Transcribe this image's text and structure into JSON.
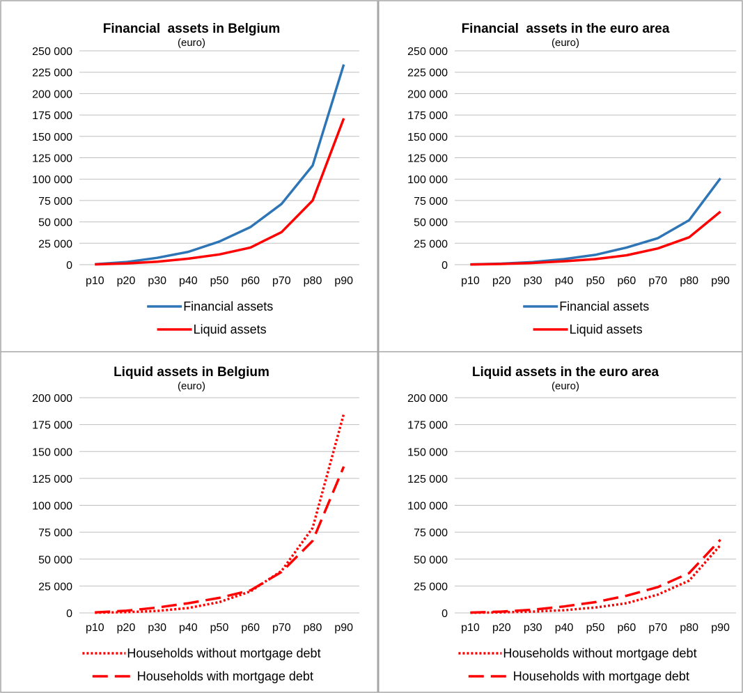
{
  "chart_data": [
    {
      "type": "line",
      "title": "Financial  assets in Belgium",
      "subtitle": "(euro)",
      "categories": [
        "p10",
        "p20",
        "p30",
        "p40",
        "p50",
        "p60",
        "p70",
        "p80",
        "p90"
      ],
      "ylim": [
        0,
        250000
      ],
      "yticks": [
        0,
        25000,
        50000,
        75000,
        100000,
        125000,
        150000,
        175000,
        200000,
        225000,
        250000
      ],
      "ytick_labels": [
        "0",
        "25 000",
        "50 000",
        "75 000",
        "100 000",
        "125 000",
        "150 000",
        "175 000",
        "200 000",
        "225 000",
        "250 000"
      ],
      "grid": true,
      "legend_position": "bottom",
      "series": [
        {
          "name": "Financial assets",
          "values": [
            500,
            3000,
            8000,
            15000,
            27000,
            44000,
            71000,
            116000,
            234000
          ],
          "color": "#2e75b6",
          "dash": "solid"
        },
        {
          "name": "Liquid assets",
          "values": [
            300,
            1500,
            3500,
            7000,
            12000,
            20000,
            38000,
            75000,
            171000
          ],
          "color": "#ff0000",
          "dash": "solid"
        }
      ]
    },
    {
      "type": "line",
      "title": "Financial  assets in the euro area",
      "subtitle": "(euro)",
      "categories": [
        "p10",
        "p20",
        "p30",
        "p40",
        "p50",
        "p60",
        "p70",
        "p80",
        "p90"
      ],
      "ylim": [
        0,
        250000
      ],
      "yticks": [
        0,
        25000,
        50000,
        75000,
        100000,
        125000,
        150000,
        175000,
        200000,
        225000,
        250000
      ],
      "ytick_labels": [
        "0",
        "25 000",
        "50 000",
        "75 000",
        "100 000",
        "125 000",
        "150 000",
        "175 000",
        "200 000",
        "225 000",
        "250 000"
      ],
      "grid": true,
      "legend_position": "bottom",
      "series": [
        {
          "name": "Financial assets",
          "values": [
            300,
            1200,
            3000,
            6500,
            11500,
            20000,
            31000,
            52000,
            101000
          ],
          "color": "#2e75b6",
          "dash": "solid"
        },
        {
          "name": "Liquid assets",
          "values": [
            200,
            800,
            2000,
            4000,
            6500,
            11000,
            19000,
            32000,
            62000
          ],
          "color": "#ff0000",
          "dash": "solid"
        }
      ]
    },
    {
      "type": "line",
      "title": "Liquid assets in Belgium",
      "subtitle": "(euro)",
      "categories": [
        "p10",
        "p20",
        "p30",
        "p40",
        "p50",
        "p60",
        "p70",
        "p80",
        "p90"
      ],
      "ylim": [
        0,
        200000
      ],
      "yticks": [
        0,
        25000,
        50000,
        75000,
        100000,
        125000,
        150000,
        175000,
        200000
      ],
      "ytick_labels": [
        "0",
        "25 000",
        "50 000",
        "75 000",
        "100 000",
        "125 000",
        "150 000",
        "175 000",
        "200 000"
      ],
      "grid": true,
      "legend_position": "bottom",
      "series": [
        {
          "name": "Households without mortgage debt",
          "values": [
            200,
            700,
            1800,
            4500,
            10000,
            20000,
            39000,
            79000,
            185000
          ],
          "color": "#ff0000",
          "dash": "dotted"
        },
        {
          "name": "Households with mortgage debt",
          "values": [
            500,
            2000,
            5000,
            9000,
            14000,
            21000,
            38000,
            67000,
            136000
          ],
          "color": "#ff0000",
          "dash": "dashed"
        }
      ]
    },
    {
      "type": "line",
      "title": "Liquid assets in the euro area",
      "subtitle": "(euro)",
      "categories": [
        "p10",
        "p20",
        "p30",
        "p40",
        "p50",
        "p60",
        "p70",
        "p80",
        "p90"
      ],
      "ylim": [
        0,
        200000
      ],
      "yticks": [
        0,
        25000,
        50000,
        75000,
        100000,
        125000,
        150000,
        175000,
        200000
      ],
      "ytick_labels": [
        "0",
        "25 000",
        "50 000",
        "75 000",
        "100 000",
        "125 000",
        "150 000",
        "175 000",
        "200 000"
      ],
      "grid": true,
      "legend_position": "bottom",
      "series": [
        {
          "name": "Households without mortgage debt",
          "values": [
            100,
            500,
            1200,
            2500,
            5000,
            9000,
            17000,
            30000,
            63000
          ],
          "color": "#ff0000",
          "dash": "dotted"
        },
        {
          "name": "Households with mortgage debt",
          "values": [
            300,
            1200,
            3000,
            6000,
            10000,
            16000,
            24000,
            37000,
            68000
          ],
          "color": "#ff0000",
          "dash": "dashed"
        }
      ]
    }
  ]
}
